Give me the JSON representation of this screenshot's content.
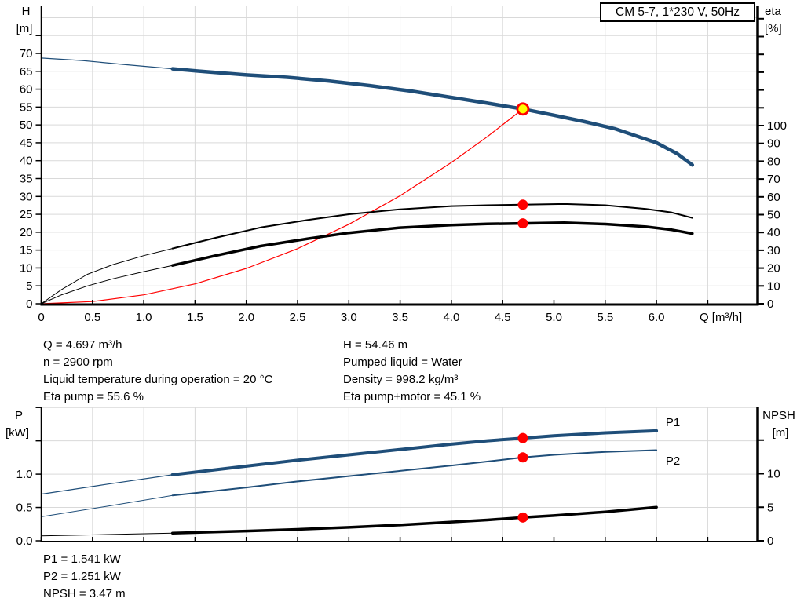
{
  "title_box": {
    "label": "CM 5-7, 1*230 V, 50Hz"
  },
  "colors": {
    "grid": "#d9d9d9",
    "axis": "#000000",
    "curve_blue": "#1f4e79",
    "label_blue": "#2e6db4",
    "red": "#ff0000",
    "duty_yellow": "#ffff00"
  },
  "info": {
    "top_left": [
      "Q = 4.697 m³/h",
      "n = 2900 rpm",
      "Liquid temperature during operation = 20 °C",
      "Eta pump = 55.6 %"
    ],
    "top_right": [
      "H = 54.46 m",
      "Pumped liquid = Water",
      "Density = 998.2 kg/m³",
      "Eta pump+motor = 45.1 %"
    ],
    "bottom": [
      "P1 = 1.541 kW",
      "P2 = 1.251 kW",
      "NPSH = 3.47 m"
    ]
  },
  "operating_point": {
    "Q": 4.697,
    "H": 54.46,
    "eta_pump": 55.6,
    "eta_pump_motor": 45.1,
    "P1": 1.541,
    "P2": 1.251,
    "NPSH": 3.47,
    "n_rpm": 2900
  },
  "chart_data": [
    {
      "id": "chart-h-eta",
      "type": "line",
      "title": "CM 5-7, 1*230 V, 50Hz",
      "x_axis": {
        "title": "Q [m³/h]",
        "title_q": 6.42,
        "ticks": [
          {
            "q": 0,
            "label": "0"
          },
          {
            "q": 0.5,
            "label": "0.5"
          },
          {
            "q": 1,
            "label": "1.0"
          },
          {
            "q": 1.5,
            "label": "1.5"
          },
          {
            "q": 2,
            "label": "2.0"
          },
          {
            "q": 2.5,
            "label": "2.5"
          },
          {
            "q": 3,
            "label": "3.0"
          },
          {
            "q": 3.5,
            "label": "3.5"
          },
          {
            "q": 4,
            "label": "4.0"
          },
          {
            "q": 4.5,
            "label": "4.5"
          },
          {
            "q": 5,
            "label": "5.0"
          },
          {
            "q": 5.5,
            "label": "5.5"
          },
          {
            "q": 6,
            "label": "6.0"
          },
          {
            "q": 6.5,
            "label": ""
          }
        ]
      },
      "left_axis": {
        "title_lines": [
          "H",
          "[m]"
        ],
        "unit": "m",
        "ticks": [
          {
            "v": 0,
            "label": "0"
          },
          {
            "v": 5,
            "label": "5"
          },
          {
            "v": 10,
            "label": "10"
          },
          {
            "v": 15,
            "label": "15"
          },
          {
            "v": 20,
            "label": "20"
          },
          {
            "v": 25,
            "label": "25"
          },
          {
            "v": 30,
            "label": "30"
          },
          {
            "v": 35,
            "label": "35"
          },
          {
            "v": 40,
            "label": "40"
          },
          {
            "v": 45,
            "label": "45"
          },
          {
            "v": 50,
            "label": "50"
          },
          {
            "v": 55,
            "label": "55"
          },
          {
            "v": 60,
            "label": "60"
          },
          {
            "v": 65,
            "label": "65"
          },
          {
            "v": 70,
            "label": "70"
          },
          {
            "v": 75,
            "label": ""
          }
        ]
      },
      "right_axis": {
        "title_lines": [
          "eta",
          "[%]"
        ],
        "unit": "%",
        "ticks": [
          {
            "v": 0,
            "label": "0"
          },
          {
            "v": 10,
            "label": "10"
          },
          {
            "v": 20,
            "label": "20"
          },
          {
            "v": 30,
            "label": "30"
          },
          {
            "v": 40,
            "label": "40"
          },
          {
            "v": 50,
            "label": "50"
          },
          {
            "v": 60,
            "label": "60"
          },
          {
            "v": 70,
            "label": "70"
          },
          {
            "v": 80,
            "label": "80"
          },
          {
            "v": 90,
            "label": "90"
          },
          {
            "v": 100,
            "label": "100"
          },
          {
            "v": 110,
            "label": ""
          },
          {
            "v": 120,
            "label": ""
          },
          {
            "v": 130,
            "label": ""
          },
          {
            "v": 140,
            "label": ""
          },
          {
            "v": 150,
            "label": ""
          },
          {
            "v": 160,
            "label": ""
          }
        ]
      },
      "grid": {
        "x_values": [
          0.5,
          1,
          1.5,
          2,
          2.5,
          3,
          3.5,
          4,
          4.5,
          5,
          5.5,
          6,
          6.5
        ],
        "y_values": [
          5,
          10,
          15,
          20,
          25,
          30,
          35,
          40,
          45,
          50,
          55,
          60,
          65,
          70,
          75,
          80
        ]
      },
      "series": [
        {
          "name": "system-curve",
          "axis": "left",
          "color": "#ff0000",
          "width": 1.2,
          "points": [
            [
              0,
              0
            ],
            [
              0.5,
              0.62
            ],
            [
              1,
              2.47
            ],
            [
              1.5,
              5.55
            ],
            [
              2,
              9.87
            ],
            [
              2.5,
              15.4
            ],
            [
              3,
              22.2
            ],
            [
              3.5,
              30.2
            ],
            [
              4,
              39.5
            ],
            [
              4.35,
              46.7
            ],
            [
              4.697,
              54.46
            ]
          ]
        },
        {
          "name": "eta-pump",
          "axis": "right",
          "color": "#000000",
          "width": 2,
          "thin_width": 1,
          "thin_points": [
            [
              0,
              0
            ],
            [
              0.2,
              8
            ],
            [
              0.45,
              16.5
            ],
            [
              0.7,
              22
            ],
            [
              1,
              27
            ],
            [
              1.28,
              31
            ]
          ],
          "points": [
            [
              1.28,
              31
            ],
            [
              1.7,
              37
            ],
            [
              2.14,
              42.8
            ],
            [
              2.6,
              47
            ],
            [
              3,
              50.2
            ],
            [
              3.5,
              53
            ],
            [
              4,
              54.8
            ],
            [
              4.35,
              55.3
            ],
            [
              4.697,
              55.6
            ],
            [
              5.1,
              56
            ],
            [
              5.5,
              55.3
            ],
            [
              5.9,
              53.2
            ],
            [
              6.15,
              51.2
            ],
            [
              6.35,
              48.2
            ]
          ]
        },
        {
          "name": "eta-pump-motor",
          "axis": "right",
          "color": "#000000",
          "width": 3.5,
          "thin_width": 1,
          "thin_points": [
            [
              0,
              0
            ],
            [
              0.2,
              5
            ],
            [
              0.45,
              10
            ],
            [
              0.7,
              14
            ],
            [
              1,
              18
            ],
            [
              1.28,
              21.5
            ]
          ],
          "points": [
            [
              1.28,
              21.5
            ],
            [
              1.7,
              27
            ],
            [
              2.14,
              32.4
            ],
            [
              2.6,
              36.5
            ],
            [
              3,
              39.8
            ],
            [
              3.5,
              42.7
            ],
            [
              4,
              44.2
            ],
            [
              4.35,
              44.8
            ],
            [
              4.697,
              45.1
            ],
            [
              5.1,
              45.5
            ],
            [
              5.5,
              44.7
            ],
            [
              5.9,
              43.2
            ],
            [
              6.15,
              41.5
            ],
            [
              6.35,
              39.4
            ]
          ]
        },
        {
          "name": "h-curve",
          "axis": "left",
          "color": "#1f4e79",
          "width": 4.5,
          "thin_width": 1.2,
          "thin_points": [
            [
              0,
              68.7
            ],
            [
              0.4,
              68
            ],
            [
              0.8,
              66.9
            ],
            [
              1.28,
              65.7
            ]
          ],
          "points": [
            [
              1.28,
              65.7
            ],
            [
              1.6,
              64.9
            ],
            [
              2,
              64
            ],
            [
              2.4,
              63.3
            ],
            [
              2.8,
              62.3
            ],
            [
              3.2,
              61
            ],
            [
              3.6,
              59.5
            ],
            [
              4,
              57.7
            ],
            [
              4.35,
              56.1
            ],
            [
              4.697,
              54.46
            ],
            [
              5,
              52.7
            ],
            [
              5.3,
              50.9
            ],
            [
              5.6,
              48.9
            ],
            [
              6,
              45
            ],
            [
              6.2,
              42
            ],
            [
              6.35,
              38.8
            ]
          ]
        }
      ],
      "markers": [
        {
          "type": "dot",
          "q": 4.697,
          "value": 55.6,
          "axis": "right",
          "fill": "#ff0000"
        },
        {
          "type": "dot",
          "q": 4.697,
          "value": 45.1,
          "axis": "right",
          "fill": "#ff0000"
        },
        {
          "type": "duty-point",
          "q": 4.697,
          "value": 54.46,
          "axis": "left",
          "fill": "#ffff00",
          "ring": "#ff0000"
        }
      ],
      "labels": []
    },
    {
      "id": "chart-p-npsh",
      "type": "line",
      "title": "",
      "x_axis": {
        "title": "",
        "title_q": null,
        "ticks": [
          {
            "q": 0,
            "label": ""
          },
          {
            "q": 0.5,
            "label": ""
          },
          {
            "q": 1,
            "label": ""
          },
          {
            "q": 1.5,
            "label": ""
          },
          {
            "q": 2,
            "label": ""
          },
          {
            "q": 2.5,
            "label": ""
          },
          {
            "q": 3,
            "label": ""
          },
          {
            "q": 3.5,
            "label": ""
          },
          {
            "q": 4,
            "label": ""
          },
          {
            "q": 4.5,
            "label": ""
          },
          {
            "q": 5,
            "label": ""
          },
          {
            "q": 5.5,
            "label": ""
          },
          {
            "q": 6,
            "label": ""
          },
          {
            "q": 6.5,
            "label": ""
          }
        ]
      },
      "left_axis": {
        "title_lines": [
          "P",
          "[kW]"
        ],
        "unit": "kW",
        "ticks": [
          {
            "v": 0,
            "label": "0.0"
          },
          {
            "v": 0.5,
            "label": "0.5"
          },
          {
            "v": 1,
            "label": "1.0"
          },
          {
            "v": 1.5,
            "label": ""
          },
          {
            "v": 2,
            "label": ""
          }
        ]
      },
      "right_axis": {
        "title_lines": [
          "NPSH",
          "[m]"
        ],
        "unit": "m",
        "ticks": [
          {
            "v": 0,
            "label": "0"
          },
          {
            "v": 5,
            "label": "5"
          },
          {
            "v": 10,
            "label": "10"
          },
          {
            "v": 15,
            "label": ""
          }
        ]
      },
      "grid": {
        "x_values": [
          0.5,
          1,
          1.5,
          2,
          2.5,
          3,
          3.5,
          4,
          4.5,
          5,
          5.5,
          6,
          6.5
        ],
        "y_values": [
          0.5,
          1,
          1.5,
          2
        ]
      },
      "series": [
        {
          "name": "p1-curve",
          "axis": "left",
          "color": "#1f4e79",
          "width": 4,
          "thin_width": 1.2,
          "thin_points": [
            [
              0,
              0.7
            ],
            [
              0.65,
              0.85
            ],
            [
              1.28,
              0.99
            ]
          ],
          "points": [
            [
              1.28,
              0.99
            ],
            [
              2,
              1.12
            ],
            [
              2.5,
              1.21
            ],
            [
              3,
              1.29
            ],
            [
              3.5,
              1.37
            ],
            [
              4,
              1.45
            ],
            [
              4.35,
              1.5
            ],
            [
              4.697,
              1.541
            ],
            [
              5,
              1.575
            ],
            [
              5.5,
              1.62
            ],
            [
              6,
              1.65
            ]
          ]
        },
        {
          "name": "p2-curve",
          "axis": "left",
          "color": "#1f4e79",
          "width": 2,
          "thin_width": 1,
          "thin_points": [
            [
              0,
              0.36
            ],
            [
              0.65,
              0.52
            ],
            [
              1.28,
              0.68
            ]
          ],
          "points": [
            [
              1.28,
              0.68
            ],
            [
              2,
              0.8
            ],
            [
              2.5,
              0.89
            ],
            [
              3,
              0.97
            ],
            [
              3.5,
              1.05
            ],
            [
              4,
              1.13
            ],
            [
              4.35,
              1.19
            ],
            [
              4.697,
              1.251
            ],
            [
              5,
              1.29
            ],
            [
              5.5,
              1.335
            ],
            [
              6,
              1.36
            ]
          ]
        },
        {
          "name": "npsh-curve",
          "axis": "right",
          "color": "#000000",
          "width": 3.5,
          "thin_width": 1,
          "thin_points": [
            [
              0,
              0.72
            ],
            [
              0.65,
              0.93
            ],
            [
              1.28,
              1.15
            ]
          ],
          "points": [
            [
              1.28,
              1.15
            ],
            [
              2,
              1.45
            ],
            [
              2.5,
              1.7
            ],
            [
              3,
              2
            ],
            [
              3.5,
              2.35
            ],
            [
              4,
              2.8
            ],
            [
              4.35,
              3.1
            ],
            [
              4.697,
              3.47
            ],
            [
              5,
              3.75
            ],
            [
              5.5,
              4.3
            ],
            [
              6,
              5
            ]
          ]
        }
      ],
      "markers": [
        {
          "type": "dot",
          "q": 4.697,
          "value": 1.541,
          "axis": "left",
          "fill": "#ff0000"
        },
        {
          "type": "dot",
          "q": 4.697,
          "value": 1.251,
          "axis": "left",
          "fill": "#ff0000"
        },
        {
          "type": "dot",
          "q": 4.697,
          "value": 3.47,
          "axis": "right",
          "fill": "#ff0000"
        }
      ],
      "labels": [
        {
          "text": "P1",
          "q": 6.09,
          "value": 1.72,
          "axis": "left",
          "color": "#2e6db4"
        },
        {
          "text": "P2",
          "q": 6.09,
          "value": 1.142,
          "axis": "left",
          "color": "#2e6db4"
        }
      ]
    }
  ]
}
